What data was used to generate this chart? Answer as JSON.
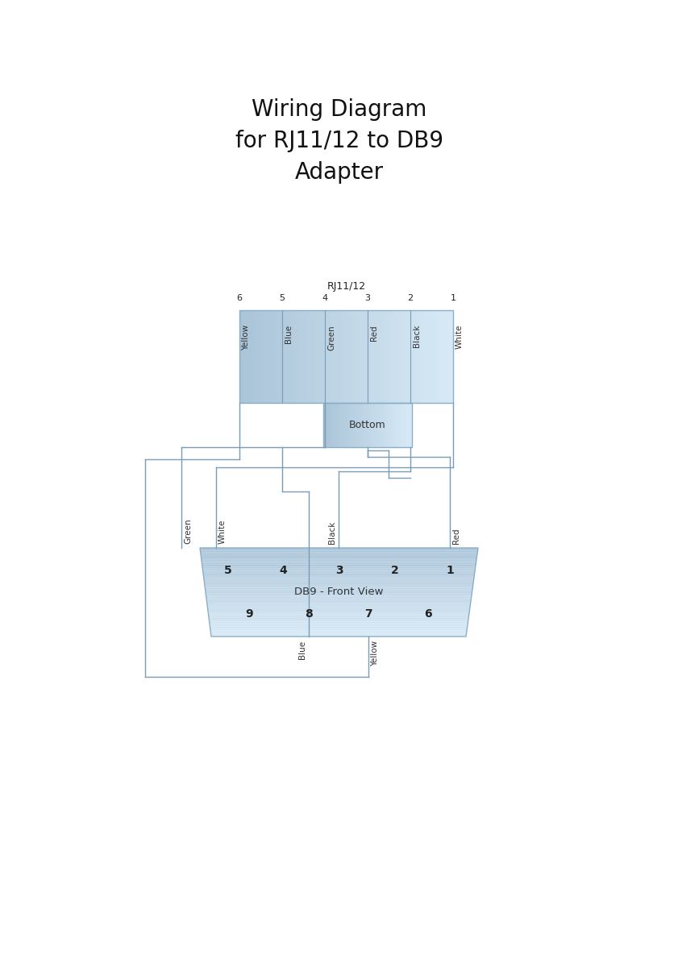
{
  "title": "Wiring Diagram\nfor RJ11/12 to DB9\nAdapter",
  "title_fontsize": 20,
  "bg_color": "#ffffff",
  "rj11_label": "RJ11/12",
  "db9_label": "DB9 - Front View",
  "pin_names": [
    "Yellow",
    "Blue",
    "Green",
    "Red",
    "Black",
    "White"
  ],
  "pin_nums_rj": [
    "6",
    "5",
    "4",
    "3",
    "2",
    "1"
  ],
  "db9_top_pins": [
    "5",
    "4",
    "3",
    "2",
    "1"
  ],
  "db9_bot_pins": [
    "9",
    "8",
    "7",
    "6"
  ],
  "line_color": "#7a9db5",
  "fill_color_dark": "#aac4d8",
  "fill_color_light": "#d8eaf6",
  "border_color": "#8aaec8"
}
